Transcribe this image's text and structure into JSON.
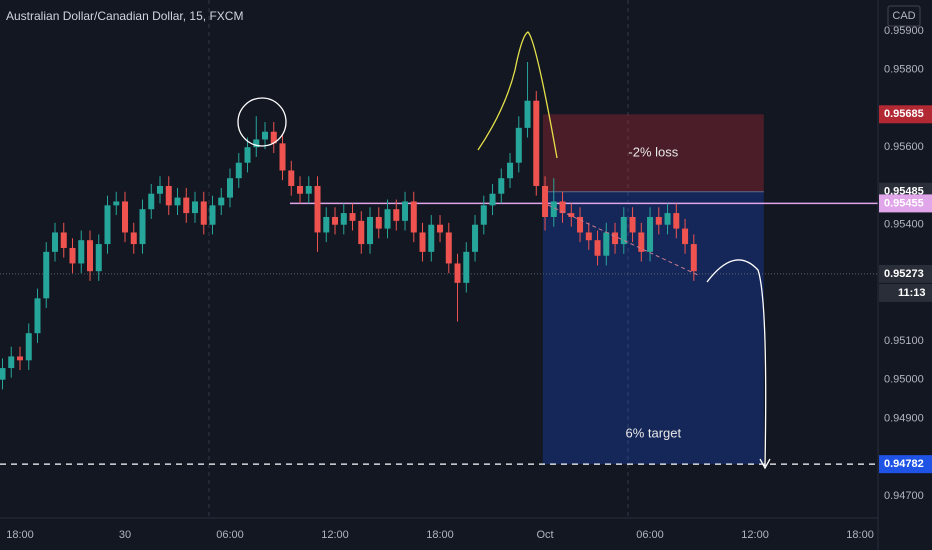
{
  "header": {
    "title": "Australian Dollar/Canadian Dollar, 15, FXCM",
    "currency": "CAD",
    "countdown": "11:13"
  },
  "chart_data": {
    "type": "candlestick",
    "x": [
      -4,
      -2,
      0,
      2,
      4,
      6,
      8,
      10,
      12,
      14,
      16,
      18,
      20,
      22,
      24,
      26,
      28,
      30,
      32,
      34,
      36,
      38,
      40,
      42,
      44,
      46,
      48,
      50,
      52,
      54,
      56,
      58,
      60,
      62,
      64,
      66,
      68,
      70,
      72,
      74,
      76,
      78,
      80,
      82,
      84,
      86,
      88,
      90,
      92,
      94,
      96,
      98,
      100,
      102,
      104,
      106,
      108,
      110,
      112,
      114,
      116,
      118,
      120,
      122,
      124,
      126,
      128,
      130,
      132,
      134,
      136,
      138,
      140,
      142,
      144,
      146,
      148,
      150,
      152,
      154
    ],
    "open": [
      0.95,
      0.9503,
      0.9506,
      0.9505,
      0.9512,
      0.9521,
      0.9533,
      0.9538,
      0.9534,
      0.953,
      0.9536,
      0.9528,
      0.9535,
      0.9545,
      0.9546,
      0.9538,
      0.9535,
      0.9544,
      0.9548,
      0.955,
      0.9545,
      0.9547,
      0.9543,
      0.9546,
      0.954,
      0.9545,
      0.9547,
      0.9552,
      0.9556,
      0.956,
      0.9562,
      0.9564,
      0.9561,
      0.9554,
      0.955,
      0.9548,
      0.955,
      0.9538,
      0.9542,
      0.954,
      0.9543,
      0.9541,
      0.9535,
      0.9542,
      0.9539,
      0.9544,
      0.9541,
      0.9546,
      0.9538,
      0.9533,
      0.954,
      0.9538,
      0.953,
      0.9525,
      0.9533,
      0.954,
      0.9545,
      0.9548,
      0.9552,
      0.9556,
      0.9565,
      0.9572,
      0.955,
      0.9542,
      0.9546,
      0.9543,
      0.9542,
      0.9538,
      0.9536,
      0.9532,
      0.9538,
      0.9535,
      0.9542,
      0.9538,
      0.9533,
      0.9542,
      0.954,
      0.9543,
      0.9539,
      0.9535
    ],
    "high": [
      0.95055,
      0.95085,
      0.95085,
      0.95145,
      0.95235,
      0.95355,
      0.95405,
      0.95405,
      0.95365,
      0.95385,
      0.95385,
      0.95375,
      0.95475,
      0.95485,
      0.95485,
      0.95405,
      0.95465,
      0.95505,
      0.95525,
      0.95525,
      0.95495,
      0.95495,
      0.95485,
      0.95485,
      0.95475,
      0.95495,
      0.95545,
      0.95585,
      0.95625,
      0.9568,
      0.95665,
      0.95665,
      0.95635,
      0.95565,
      0.95525,
      0.95525,
      0.95525,
      0.95445,
      0.95445,
      0.95455,
      0.95455,
      0.95435,
      0.95445,
      0.95445,
      0.95465,
      0.95465,
      0.95485,
      0.95485,
      0.95405,
      0.95425,
      0.95425,
      0.95405,
      0.95325,
      0.95355,
      0.95425,
      0.95475,
      0.95505,
      0.95545,
      0.95585,
      0.9568,
      0.9582,
      0.95745,
      0.95525,
      0.9552,
      0.95485,
      0.95455,
      0.95445,
      0.95405,
      0.95385,
      0.95405,
      0.95405,
      0.95445,
      0.95445,
      0.95405,
      0.95445,
      0.95445,
      0.95455,
      0.95455,
      0.95415,
      0.95375
    ],
    "low": [
      0.94975,
      0.95005,
      0.95025,
      0.95025,
      0.95095,
      0.95185,
      0.95305,
      0.95315,
      0.95275,
      0.95275,
      0.95255,
      0.95255,
      0.95325,
      0.95425,
      0.95355,
      0.95325,
      0.95325,
      0.95415,
      0.95455,
      0.95425,
      0.95425,
      0.95405,
      0.95405,
      0.95375,
      0.95375,
      0.95425,
      0.95445,
      0.95495,
      0.95535,
      0.95575,
      0.95595,
      0.95585,
      0.95515,
      0.95475,
      0.95455,
      0.95455,
      0.9533,
      0.95355,
      0.95375,
      0.95375,
      0.95385,
      0.95325,
      0.95325,
      0.95365,
      0.95365,
      0.95385,
      0.95385,
      0.95355,
      0.95305,
      0.95305,
      0.95355,
      0.95275,
      0.9515,
      0.95225,
      0.95305,
      0.95375,
      0.95425,
      0.95455,
      0.95495,
      0.95535,
      0.95625,
      0.95475,
      0.95385,
      0.95395,
      0.95405,
      0.95395,
      0.95355,
      0.95335,
      0.95295,
      0.95295,
      0.95325,
      0.95325,
      0.95355,
      0.95305,
      0.95305,
      0.95375,
      0.95375,
      0.95365,
      0.95325,
      0.95255
    ],
    "close": [
      0.9503,
      0.9506,
      0.9505,
      0.9512,
      0.9521,
      0.9533,
      0.9538,
      0.9534,
      0.953,
      0.9536,
      0.9528,
      0.9535,
      0.9545,
      0.9546,
      0.9538,
      0.9535,
      0.9544,
      0.9548,
      0.955,
      0.9545,
      0.9547,
      0.9543,
      0.9546,
      0.954,
      0.9545,
      0.9547,
      0.9552,
      0.9556,
      0.956,
      0.9562,
      0.9564,
      0.9561,
      0.9554,
      0.955,
      0.9548,
      0.955,
      0.9538,
      0.9542,
      0.954,
      0.9543,
      0.9541,
      0.9535,
      0.9542,
      0.9539,
      0.9544,
      0.9541,
      0.9546,
      0.9538,
      0.9533,
      0.954,
      0.9538,
      0.953,
      0.9525,
      0.9533,
      0.954,
      0.9545,
      0.9548,
      0.9552,
      0.9556,
      0.9565,
      0.9572,
      0.955,
      0.9542,
      0.9546,
      0.9543,
      0.9542,
      0.9538,
      0.9536,
      0.9532,
      0.9538,
      0.9535,
      0.9542,
      0.9538,
      0.9533,
      0.9542,
      0.954,
      0.9543,
      0.9539,
      0.9535,
      0.9528
    ],
    "up_color": "#26a69a",
    "down_color": "#ef5350",
    "xlim": [
      -4.57,
      196.1
    ],
    "ylim": [
      0.94643,
      0.9598
    ],
    "xticks": [
      {
        "value": 0,
        "label": "18:00"
      },
      {
        "value": 24,
        "label": "30"
      },
      {
        "value": 48,
        "label": "06:00"
      },
      {
        "value": 72,
        "label": "12:00"
      },
      {
        "value": 96,
        "label": "18:00"
      },
      {
        "value": 120,
        "label": "Oct"
      },
      {
        "value": 144,
        "label": "06:00"
      },
      {
        "value": 168,
        "label": "12:00"
      },
      {
        "value": 192,
        "label": "18:00"
      }
    ],
    "yticks": [
      {
        "value": 0.959,
        "label": "0.95900"
      },
      {
        "value": 0.958,
        "label": "0.95800"
      },
      {
        "value": 0.956,
        "label": "0.95600"
      },
      {
        "value": 0.954,
        "label": "0.95400"
      },
      {
        "value": 0.951,
        "label": "0.95100"
      },
      {
        "value": 0.95,
        "label": "0.95000"
      },
      {
        "value": 0.949,
        "label": "0.94900"
      },
      {
        "value": 0.947,
        "label": "0.94700"
      }
    ],
    "price_labels": [
      {
        "value": 0.95685,
        "color": "#b22833"
      },
      {
        "value": 0.95485,
        "color": "#2a2e39"
      },
      {
        "value": 0.95455,
        "color": "#e1a5e9",
        "line": "solid",
        "line_from": 61.7
      },
      {
        "value": 0.95273,
        "color": "#2a2e39",
        "line": "dotted"
      },
      {
        "value": 0.94782,
        "color": "#1e53e5",
        "line": "dashed"
      }
    ],
    "position": {
      "stop": 0.95685,
      "entry": 0.95485,
      "target": 0.94782,
      "x_start": 119.5,
      "x_end": 170,
      "stop_label": "-2% loss",
      "target_label": "6% target"
    }
  }
}
